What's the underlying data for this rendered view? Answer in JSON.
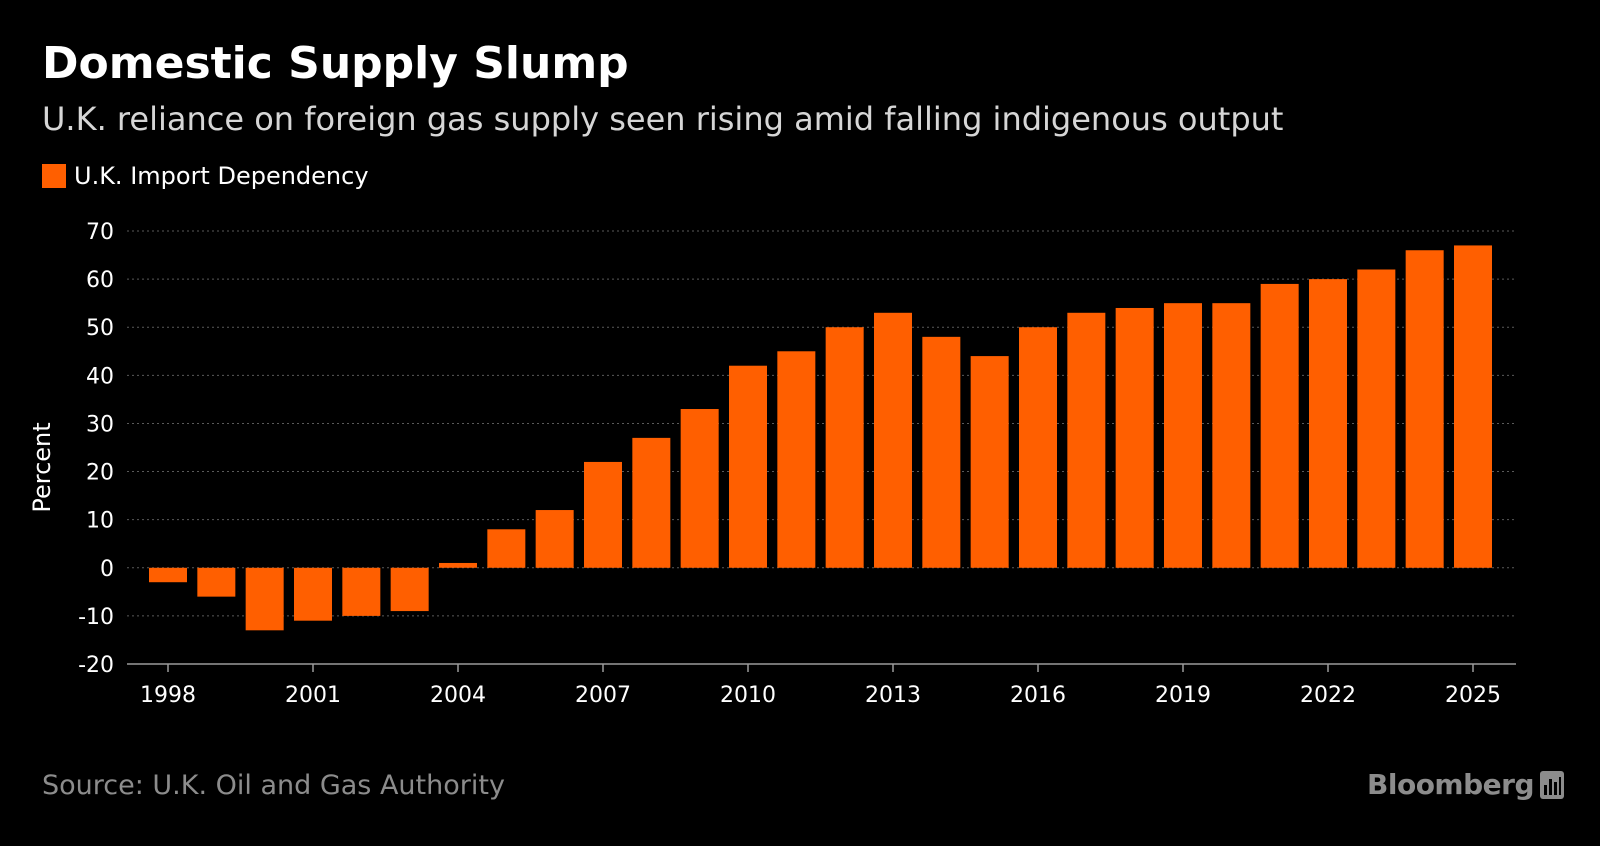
{
  "header": {
    "title": "Domestic Supply Slump",
    "subtitle": "U.K. reliance on foreign gas supply seen rising amid falling indigenous output"
  },
  "legend": {
    "label": "U.K. Import Dependency",
    "color": "#ff5f00"
  },
  "footer": {
    "source": "Source: U.K. Oil and Gas Authority",
    "brand": "Bloomberg",
    "brand_icon": "bloomberg-bars-icon"
  },
  "colors": {
    "background": "#000000",
    "bar": "#ff5f00",
    "grid": "#5a5a5a",
    "text": "#ffffff",
    "muted": "#8c8c8c"
  },
  "chart_data": {
    "type": "bar",
    "title": "Domestic Supply Slump",
    "subtitle": "U.K. reliance on foreign gas supply seen rising amid falling indigenous output",
    "xlabel": "",
    "ylabel": "Percent",
    "ylim": [
      -20,
      70
    ],
    "yticks": [
      70,
      60,
      50,
      40,
      30,
      20,
      10,
      0,
      -10,
      -20
    ],
    "grid": true,
    "legend_position": "top-left",
    "x_tick_labels": [
      "1998",
      "2001",
      "2004",
      "2007",
      "2010",
      "2013",
      "2016",
      "2019",
      "2022",
      "2025"
    ],
    "categories": [
      "1998",
      "1999",
      "2000",
      "2001",
      "2002",
      "2003",
      "2004",
      "2005",
      "2006",
      "2007",
      "2008",
      "2009",
      "2010",
      "2011",
      "2012",
      "2013",
      "2014",
      "2015",
      "2016",
      "2017",
      "2018",
      "2019",
      "2020",
      "2021",
      "2022",
      "2023",
      "2024",
      "2025"
    ],
    "series": [
      {
        "name": "U.K. Import Dependency",
        "values": [
          -3,
          -6,
          -13,
          -11,
          -10,
          -9,
          1,
          8,
          12,
          22,
          27,
          33,
          42,
          45,
          50,
          53,
          48,
          44,
          50,
          53,
          54,
          55,
          55,
          59,
          60,
          62,
          66,
          67
        ]
      }
    ]
  }
}
